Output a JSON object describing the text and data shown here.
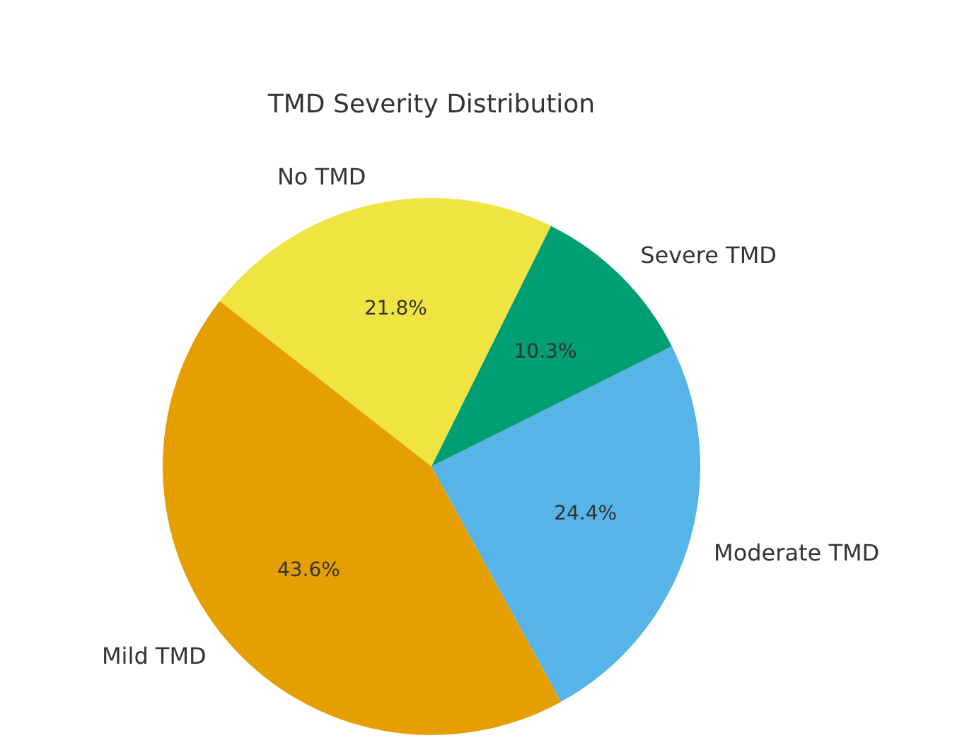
{
  "chart_data": {
    "type": "pie",
    "title": "TMD Severity Distribution",
    "categories": [
      "No TMD",
      "Severe TMD",
      "Moderate TMD",
      "Mild TMD"
    ],
    "values": [
      21.8,
      10.3,
      24.4,
      43.6
    ],
    "value_labels": [
      "21.8%",
      "10.3%",
      "24.4%",
      "43.6%"
    ],
    "colors": [
      "#f0e442",
      "#009e73",
      "#56b4e9",
      "#e69f00"
    ],
    "legend": false
  }
}
